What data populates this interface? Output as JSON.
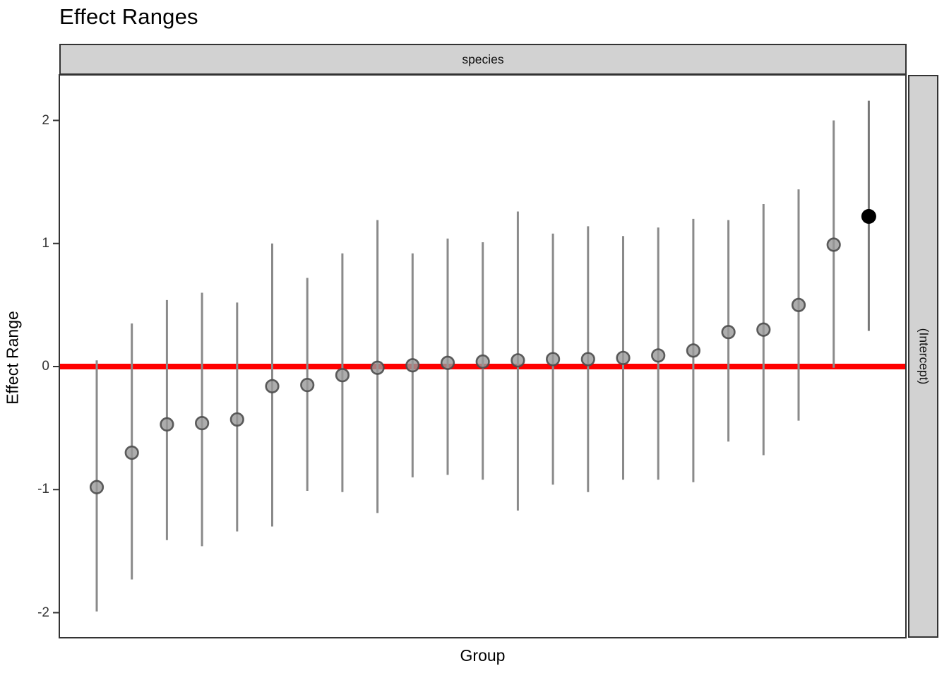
{
  "title": "Effect Ranges",
  "facet": {
    "top_strip_label": "species",
    "right_strip_label": "(Intercept)"
  },
  "axes": {
    "x_label": "Group",
    "y_label": "Effect Range",
    "y_tick_labels": [
      "2",
      "1",
      "0",
      "-1",
      "-2"
    ],
    "x_tick_labels": []
  },
  "colors": {
    "reference_line": "#FF0000",
    "bar": "#8A8A8A",
    "intercept_bar": "#777777",
    "point_fill": "#989898",
    "point_stroke": "#4D4D4D",
    "intercept_point": "#000000",
    "strip_fill": "#D2D2D2",
    "panel_border": "#333333",
    "tick_label": "#333333",
    "text": "#000000"
  },
  "chart_data": {
    "type": "scatter",
    "subtype": "pointrange-caterpillar",
    "title": "Effect Ranges",
    "xlabel": "Group",
    "ylabel": "Effect Range",
    "facet_label": "species",
    "panel_label": "(Intercept)",
    "ylim": [
      -2.2,
      2.37
    ],
    "y_ticks": [
      2,
      1,
      0,
      -1,
      -2
    ],
    "grid": "off",
    "reference_line_y": 0,
    "n_groups": 23,
    "groups": [
      {
        "point": -0.98,
        "lo": -1.99,
        "hi": 0.05,
        "highlight": false
      },
      {
        "point": -0.7,
        "lo": -1.73,
        "hi": 0.35,
        "highlight": false
      },
      {
        "point": -0.47,
        "lo": -1.41,
        "hi": 0.54,
        "highlight": false
      },
      {
        "point": -0.46,
        "lo": -1.46,
        "hi": 0.6,
        "highlight": false
      },
      {
        "point": -0.43,
        "lo": -1.34,
        "hi": 0.52,
        "highlight": false
      },
      {
        "point": -0.16,
        "lo": -1.3,
        "hi": 1.0,
        "highlight": false
      },
      {
        "point": -0.15,
        "lo": -1.01,
        "hi": 0.72,
        "highlight": false
      },
      {
        "point": -0.07,
        "lo": -1.02,
        "hi": 0.92,
        "highlight": false
      },
      {
        "point": -0.01,
        "lo": -1.19,
        "hi": 1.19,
        "highlight": false
      },
      {
        "point": 0.01,
        "lo": -0.9,
        "hi": 0.92,
        "highlight": false
      },
      {
        "point": 0.03,
        "lo": -0.88,
        "hi": 1.04,
        "highlight": false
      },
      {
        "point": 0.04,
        "lo": -0.92,
        "hi": 1.01,
        "highlight": false
      },
      {
        "point": 0.05,
        "lo": -1.17,
        "hi": 1.26,
        "highlight": false
      },
      {
        "point": 0.06,
        "lo": -0.96,
        "hi": 1.08,
        "highlight": false
      },
      {
        "point": 0.06,
        "lo": -1.02,
        "hi": 1.14,
        "highlight": false
      },
      {
        "point": 0.07,
        "lo": -0.92,
        "hi": 1.06,
        "highlight": false
      },
      {
        "point": 0.09,
        "lo": -0.92,
        "hi": 1.13,
        "highlight": false
      },
      {
        "point": 0.13,
        "lo": -0.94,
        "hi": 1.2,
        "highlight": false
      },
      {
        "point": 0.28,
        "lo": -0.61,
        "hi": 1.19,
        "highlight": false
      },
      {
        "point": 0.3,
        "lo": -0.72,
        "hi": 1.32,
        "highlight": false
      },
      {
        "point": 0.5,
        "lo": -0.44,
        "hi": 1.44,
        "highlight": false
      },
      {
        "point": 0.99,
        "lo": -0.01,
        "hi": 2.0,
        "highlight": false
      },
      {
        "point": 1.22,
        "lo": 0.29,
        "hi": 2.16,
        "highlight": true
      }
    ]
  }
}
